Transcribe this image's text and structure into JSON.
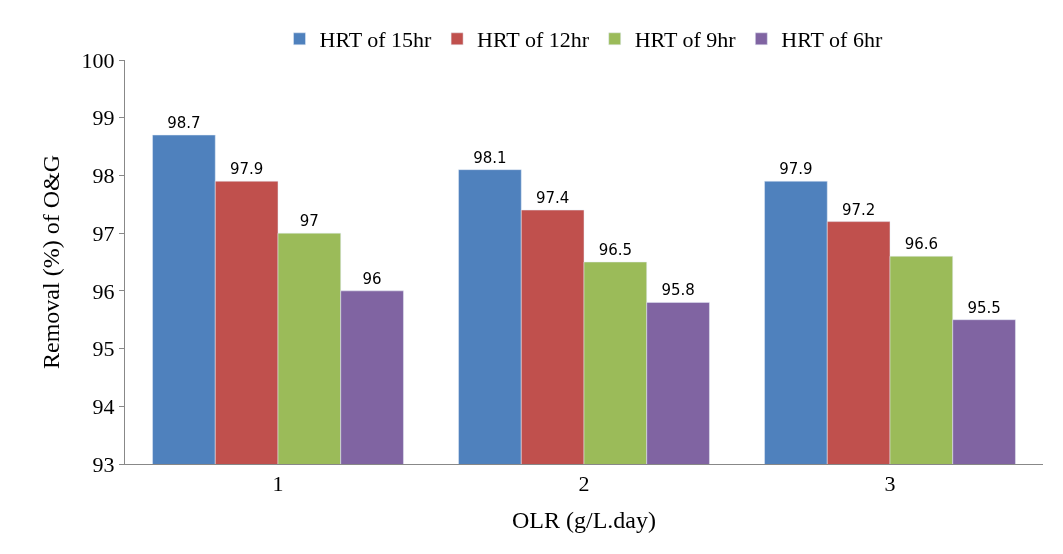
{
  "chart_data": {
    "type": "bar",
    "xlabel": "OLR (g/L.day)",
    "ylabel": "Removal (%) of O&G",
    "categories": [
      "1",
      "2",
      "3"
    ],
    "series": [
      {
        "name": "HRT of 15hr",
        "color": "#4f81bd",
        "values": [
          98.7,
          98.1,
          97.9
        ]
      },
      {
        "name": "HRT of 12hr",
        "color": "#c0504d",
        "values": [
          97.9,
          97.4,
          97.2
        ]
      },
      {
        "name": "HRT of 9hr",
        "color": "#9bbb59",
        "values": [
          97,
          96.5,
          96.6
        ]
      },
      {
        "name": "HRT of 6hr",
        "color": "#8064a2",
        "values": [
          96,
          95.8,
          95.5
        ]
      }
    ],
    "ylim": [
      93,
      100
    ],
    "yticks": [
      93,
      94,
      95,
      96,
      97,
      98,
      99,
      100
    ],
    "legend": "top",
    "data_labels": true
  }
}
